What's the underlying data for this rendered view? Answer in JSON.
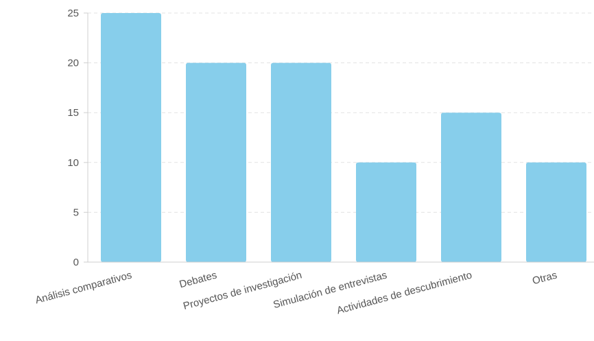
{
  "chart_data": {
    "type": "bar",
    "title": "",
    "xlabel": "",
    "ylabel": "",
    "categories": [
      "Análisis comparativos",
      "Debates",
      "Proyectos de investigación",
      "Simulación de entrevistas",
      "Actividades de descubrimiento",
      "Otras"
    ],
    "values": [
      25,
      20,
      20,
      10,
      15,
      10
    ],
    "ylim": [
      0,
      25
    ],
    "yticks": [
      "0",
      "5",
      "10",
      "15",
      "20",
      "25"
    ],
    "grid": true,
    "legend": "none",
    "colors": {
      "bar": "#87ceeb",
      "grid": "#e3e3e3",
      "axis": "#cfcfcf",
      "text": "#555555"
    }
  }
}
